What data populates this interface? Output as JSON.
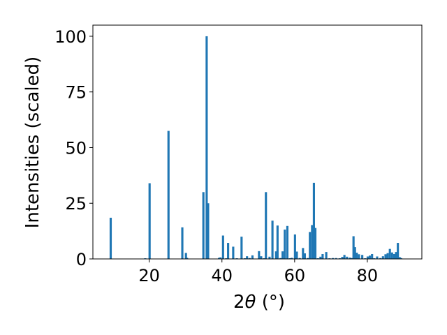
{
  "chart_data": {
    "type": "bar",
    "xlabel_prefix": "2",
    "xlabel_symbol": "θ",
    "xlabel_unit": " (°)",
    "ylabel": "Intensities (scaled)",
    "xlim": [
      4.5,
      95
    ],
    "ylim": [
      0,
      105
    ],
    "xticks": [
      "20",
      "40",
      "60",
      "80"
    ],
    "xtick_values": [
      20,
      40,
      60,
      80
    ],
    "yticks": [
      "0",
      "25",
      "50",
      "75",
      "100"
    ],
    "ytick_values": [
      0,
      25,
      50,
      75,
      100
    ],
    "grid": false,
    "bar_color": "#1f77b4",
    "bar_width": 0.6,
    "x": [
      9.4,
      18.9,
      20.1,
      25.3,
      29.1,
      30.1,
      30.4,
      34.9,
      35.8,
      36.2,
      39.2,
      39.6,
      40.3,
      41.2,
      41.7,
      43.1,
      44.1,
      45.4,
      46.3,
      46.9,
      47.6,
      48.4,
      50.2,
      50.8,
      51.6,
      52.1,
      53.1,
      53.9,
      54.9,
      55.3,
      56.1,
      56.7,
      57.3,
      58.0,
      58.7,
      59.2,
      60.1,
      60.6,
      61.4,
      62.3,
      62.8,
      63.6,
      64.2,
      64.8,
      65.3,
      65.7,
      66.4,
      67.1,
      67.7,
      68.7,
      69.6,
      70.5,
      71.4,
      72.4,
      73.1,
      73.7,
      74.4,
      75.2,
      75.8,
      76.2,
      76.6,
      77.1,
      77.7,
      78.6,
      79.4,
      80.1,
      80.7,
      81.3,
      81.9,
      82.7,
      83.6,
      84.3,
      85.0,
      85.6,
      86.2,
      86.8,
      87.4,
      87.9,
      88.4,
      88.9,
      89.3
    ],
    "values": [
      18.5,
      0.3,
      34,
      57.5,
      14.2,
      2.7,
      0.5,
      30,
      100,
      25,
      0.5,
      0.7,
      10.5,
      0.3,
      7.2,
      5.5,
      0.3,
      10,
      0.3,
      1.2,
      0.4,
      1.6,
      3.5,
      1.2,
      0.3,
      30,
      1.0,
      17.2,
      3.4,
      15,
      0.4,
      3.4,
      13.2,
      14.8,
      0.3,
      0.5,
      11,
      3.3,
      0.4,
      4.9,
      2.5,
      0.4,
      12.1,
      15.2,
      34.2,
      13.9,
      0.3,
      1.0,
      2.2,
      3.1,
      0.3,
      0.4,
      0.4,
      0.3,
      0.9,
      1.8,
      1.0,
      0.6,
      0.4,
      10.2,
      5.3,
      2.8,
      2.1,
      1.8,
      0.3,
      1.1,
      1.5,
      2.2,
      0.3,
      1.1,
      0.4,
      1.2,
      2.1,
      2.6,
      4.5,
      2.9,
      2.2,
      3.1,
      7.2,
      0.8,
      0.4
    ]
  }
}
